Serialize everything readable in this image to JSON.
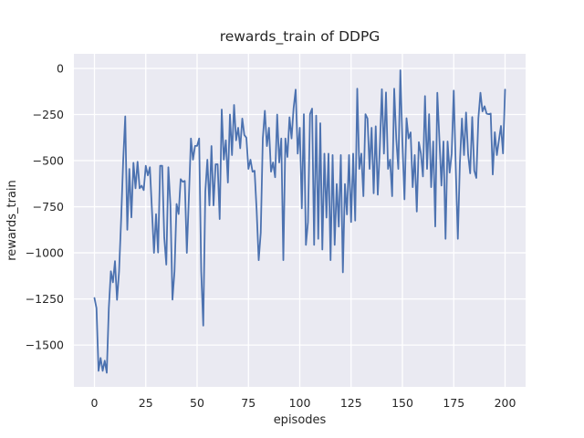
{
  "figure": {
    "title": "rewards_train of DDPG",
    "xlabel": "episodes",
    "ylabel": "rewards_train"
  },
  "chart_data": {
    "type": "line",
    "title": "rewards_train of DDPG",
    "xlabel": "episodes",
    "ylabel": "rewards_train",
    "legend": false,
    "grid": true,
    "x_start": 0,
    "x_step": 1,
    "xlim": [
      -10,
      210
    ],
    "ylim": [
      -1727,
      79
    ],
    "xticks": {
      "values": [
        0,
        25,
        50,
        75,
        100,
        125,
        150,
        175,
        200
      ],
      "labels": [
        "0",
        "25",
        "50",
        "75",
        "100",
        "125",
        "150",
        "175",
        "200"
      ]
    },
    "yticks": {
      "values": [
        0,
        -250,
        -500,
        -750,
        -1000,
        -1250,
        -1500
      ],
      "labels": [
        "0",
        "−250",
        "−500",
        "−750",
        "−1000",
        "−1250",
        "−1500"
      ]
    },
    "style": {
      "figure_bg": "#ffffff",
      "axes_bg": "#eaeaf2",
      "grid_color": "#ffffff",
      "text_color": "#262626",
      "line_color": "#4c72b0",
      "line_width": 1.8
    },
    "series": [
      {
        "name": "rewards_train",
        "color": "#4c72b0",
        "values": [
          -1245,
          -1300,
          -1640,
          -1570,
          -1640,
          -1585,
          -1650,
          -1300,
          -1100,
          -1160,
          -1045,
          -1255,
          -1100,
          -820,
          -500,
          -260,
          -875,
          -545,
          -808,
          -512,
          -650,
          -506,
          -650,
          -636,
          -660,
          -528,
          -580,
          -536,
          -767,
          -1000,
          -790,
          -998,
          -528,
          -528,
          -916,
          -1064,
          -536,
          -740,
          -1254,
          -1100,
          -735,
          -790,
          -600,
          -615,
          -610,
          -1000,
          -700,
          -380,
          -495,
          -420,
          -420,
          -380,
          -1100,
          -1395,
          -668,
          -495,
          -743,
          -421,
          -743,
          -520,
          -520,
          -817,
          -223,
          -495,
          -390,
          -619,
          -250,
          -470,
          -198,
          -390,
          -322,
          -433,
          -272,
          -361,
          -376,
          -545,
          -495,
          -560,
          -555,
          -770,
          -1040,
          -891,
          -380,
          -230,
          -421,
          -322,
          -560,
          -510,
          -590,
          -250,
          -510,
          -380,
          -1040,
          -380,
          -480,
          -265,
          -380,
          -215,
          -115,
          -462,
          -322,
          -759,
          -248,
          -957,
          -833,
          -248,
          -218,
          -957,
          -256,
          -924,
          -297,
          -982,
          -462,
          -809,
          -462,
          -1040,
          -470,
          -957,
          -627,
          -858,
          -470,
          -1106,
          -627,
          -792,
          -470,
          -833,
          -462,
          -825,
          -110,
          -545,
          -462,
          -693,
          -248,
          -272,
          -545,
          -322,
          -677,
          -314,
          -685,
          -429,
          -113,
          -462,
          -130,
          -545,
          -495,
          -693,
          -110,
          -380,
          -545,
          -10,
          -400,
          -710,
          -270,
          -380,
          -347,
          -644,
          -470,
          -776,
          -400,
          -462,
          -586,
          -150,
          -545,
          -248,
          -644,
          -396,
          -857,
          -132,
          -380,
          -635,
          -396,
          -924,
          -396,
          -565,
          -462,
          -120,
          -545,
          -924,
          -511,
          -272,
          -470,
          -239,
          -466,
          -569,
          -264,
          -554,
          -594,
          -270,
          -132,
          -233,
          -205,
          -245,
          -248,
          -245,
          -575,
          -346,
          -470,
          -390,
          -312,
          -461,
          -115
        ]
      }
    ]
  }
}
